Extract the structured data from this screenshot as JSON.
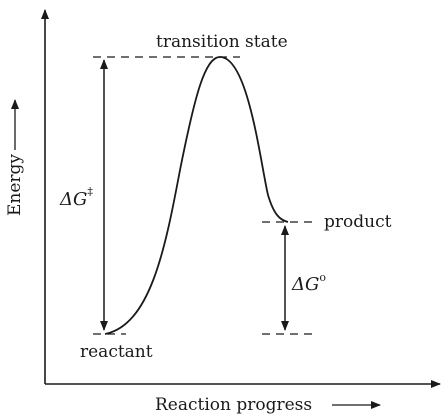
{
  "labels": {
    "transition_state": "transition state",
    "product": "product",
    "reactant": "reactant",
    "y_axis": "Energy",
    "x_axis": "Reaction progress",
    "activation_symbol": "ΔG",
    "activation_superscript": "‡",
    "free_energy_symbol": "ΔG",
    "free_energy_superscript": "o"
  },
  "colors": {
    "ink": "#1a1a1a",
    "background": "#ffffff"
  }
}
